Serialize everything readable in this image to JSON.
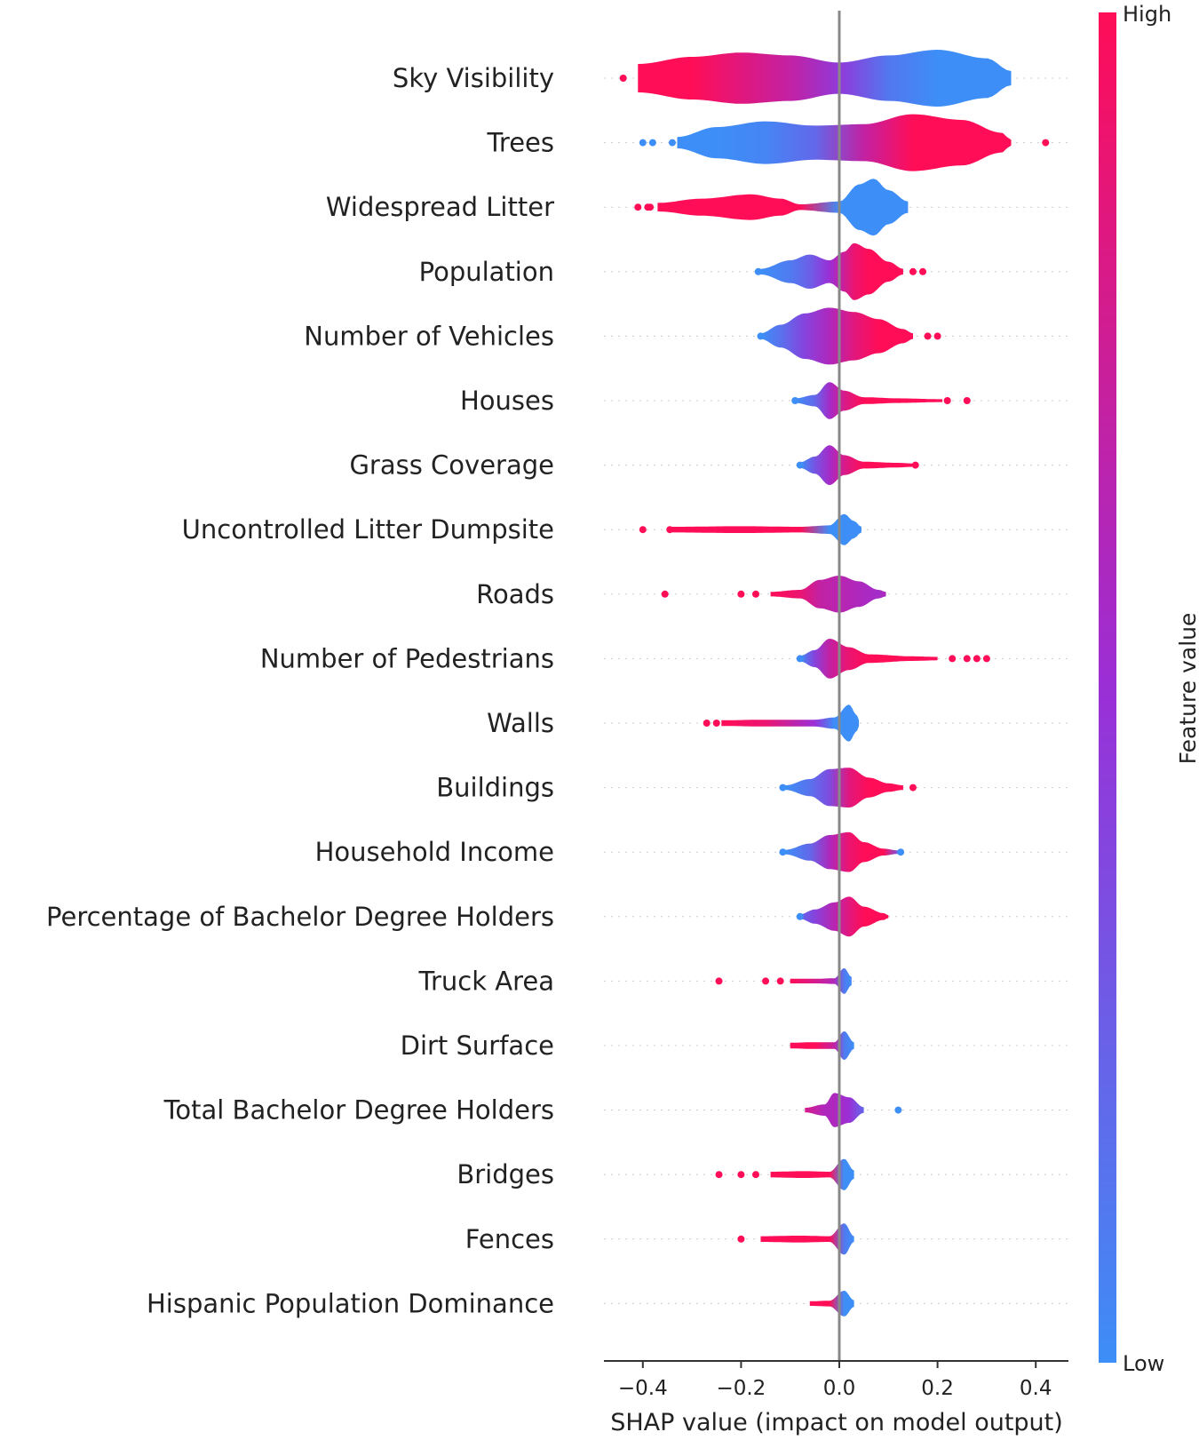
{
  "chart_data": {
    "type": "scatter",
    "subtype": "shap-violin-summary",
    "xlabel": "SHAP value (impact on model output)",
    "xlim": [
      -0.48,
      0.47
    ],
    "xticks": [
      -0.4,
      -0.2,
      0.0,
      0.2,
      0.4
    ],
    "xtick_labels": [
      "−0.4",
      "−0.2",
      "0.0",
      "0.2",
      "0.4"
    ],
    "colorbar": {
      "title": "Feature value",
      "high_label": "High",
      "low_label": "Low",
      "high_color": "#ff0d57",
      "mid_color": "#9a2fd6",
      "low_color": "#3d8ef7"
    },
    "features": [
      {
        "name": "Sky Visibility",
        "body": [
          [
            -0.41,
            0.5,
            1
          ],
          [
            -0.3,
            0.75,
            1
          ],
          [
            -0.2,
            0.9,
            0.85
          ],
          [
            -0.1,
            0.8,
            0.7
          ],
          [
            0,
            0.55,
            0.45
          ],
          [
            0.1,
            0.8,
            0.12
          ],
          [
            0.2,
            1,
            0
          ],
          [
            0.3,
            0.7,
            0
          ],
          [
            0.35,
            0.25,
            0
          ]
        ],
        "points": [
          [
            -0.44,
            1
          ]
        ]
      },
      {
        "name": "Trees",
        "body": [
          [
            -0.33,
            0.2,
            0
          ],
          [
            -0.25,
            0.55,
            0
          ],
          [
            -0.15,
            0.75,
            0.05
          ],
          [
            -0.05,
            0.6,
            0.2
          ],
          [
            0.05,
            0.65,
            0.7
          ],
          [
            0.15,
            1,
            1
          ],
          [
            0.25,
            0.8,
            1
          ],
          [
            0.33,
            0.35,
            1
          ],
          [
            0.35,
            0.1,
            1
          ]
        ],
        "points": [
          [
            -0.4,
            0
          ],
          [
            -0.38,
            0
          ],
          [
            -0.34,
            0
          ],
          [
            0.42,
            1
          ]
        ]
      },
      {
        "name": "Widespread Litter",
        "body": [
          [
            -0.37,
            0.15,
            1
          ],
          [
            -0.28,
            0.3,
            1
          ],
          [
            -0.18,
            0.45,
            1
          ],
          [
            -0.12,
            0.3,
            1
          ],
          [
            -0.08,
            0.1,
            1
          ],
          [
            0,
            0.2,
            0
          ],
          [
            0.04,
            0.8,
            0
          ],
          [
            0.07,
            1,
            0
          ],
          [
            0.1,
            0.6,
            0
          ],
          [
            0.14,
            0.2,
            0
          ]
        ],
        "points": [
          [
            -0.41,
            1
          ],
          [
            -0.39,
            1
          ],
          [
            -0.385,
            1
          ]
        ]
      },
      {
        "name": "Population",
        "body": [
          [
            -0.16,
            0.1,
            0
          ],
          [
            -0.1,
            0.4,
            0.1
          ],
          [
            -0.06,
            0.6,
            0.25
          ],
          [
            -0.02,
            0.4,
            0.5
          ],
          [
            0.01,
            0.7,
            0.75
          ],
          [
            0.03,
            1,
            0.9
          ],
          [
            0.06,
            0.8,
            1
          ],
          [
            0.1,
            0.35,
            1
          ],
          [
            0.13,
            0.1,
            1
          ]
        ],
        "points": [
          [
            -0.165,
            0
          ],
          [
            0.15,
            1
          ],
          [
            0.17,
            1
          ]
        ]
      },
      {
        "name": "Number of Vehicles",
        "body": [
          [
            -0.16,
            0.1,
            0
          ],
          [
            -0.12,
            0.4,
            0.15
          ],
          [
            -0.07,
            0.8,
            0.4
          ],
          [
            -0.02,
            1,
            0.6
          ],
          [
            0.03,
            0.85,
            0.85
          ],
          [
            0.08,
            0.6,
            1
          ],
          [
            0.13,
            0.25,
            1
          ],
          [
            0.15,
            0.1,
            1
          ]
        ],
        "points": [
          [
            -0.16,
            0
          ],
          [
            0.18,
            1
          ],
          [
            0.2,
            1
          ]
        ]
      },
      {
        "name": "Houses",
        "body": [
          [
            -0.09,
            0.08,
            0
          ],
          [
            -0.05,
            0.2,
            0.2
          ],
          [
            -0.02,
            0.65,
            0.55
          ],
          [
            0.01,
            0.35,
            0.8
          ],
          [
            0.05,
            0.12,
            1
          ],
          [
            0.12,
            0.08,
            1
          ],
          [
            0.21,
            0.05,
            1
          ]
        ],
        "points": [
          [
            -0.09,
            0
          ],
          [
            0.22,
            1
          ],
          [
            0.26,
            1
          ]
        ]
      },
      {
        "name": "Grass Coverage",
        "body": [
          [
            -0.08,
            0.1,
            0
          ],
          [
            -0.05,
            0.3,
            0.3
          ],
          [
            -0.02,
            0.7,
            0.55
          ],
          [
            0.01,
            0.35,
            0.8
          ],
          [
            0.05,
            0.12,
            1
          ],
          [
            0.12,
            0.08,
            1
          ],
          [
            0.15,
            0.06,
            1
          ]
        ],
        "points": [
          [
            -0.08,
            0
          ],
          [
            0.155,
            1
          ]
        ]
      },
      {
        "name": "Uncontrolled Litter Dumpsite",
        "body": [
          [
            -0.34,
            0.1,
            1
          ],
          [
            -0.2,
            0.12,
            1
          ],
          [
            -0.08,
            0.1,
            1
          ],
          [
            -0.02,
            0.15,
            0
          ],
          [
            0.01,
            0.55,
            0
          ],
          [
            0.03,
            0.3,
            0
          ],
          [
            0.045,
            0.1,
            0
          ]
        ],
        "points": [
          [
            -0.4,
            1
          ],
          [
            -0.345,
            1
          ]
        ]
      },
      {
        "name": "Roads",
        "body": [
          [
            -0.14,
            0.08,
            1
          ],
          [
            -0.08,
            0.15,
            0.9
          ],
          [
            -0.04,
            0.5,
            0.7
          ],
          [
            0,
            0.65,
            0.65
          ],
          [
            0.04,
            0.45,
            0.6
          ],
          [
            0.08,
            0.15,
            0.55
          ],
          [
            0.095,
            0.08,
            0.6
          ]
        ],
        "points": [
          [
            -0.355,
            1
          ],
          [
            -0.2,
            1
          ],
          [
            -0.17,
            1
          ]
        ]
      },
      {
        "name": "Number of Pedestrians",
        "body": [
          [
            -0.08,
            0.1,
            0
          ],
          [
            -0.05,
            0.3,
            0.4
          ],
          [
            -0.02,
            0.7,
            0.7
          ],
          [
            0.02,
            0.4,
            0.9
          ],
          [
            0.06,
            0.15,
            1
          ],
          [
            0.15,
            0.08,
            1
          ],
          [
            0.2,
            0.06,
            1
          ]
        ],
        "points": [
          [
            -0.08,
            0
          ],
          [
            0.23,
            1
          ],
          [
            0.26,
            1
          ],
          [
            0.28,
            1
          ],
          [
            0.3,
            1
          ]
        ]
      },
      {
        "name": "Walls",
        "body": [
          [
            -0.24,
            0.1,
            1
          ],
          [
            -0.15,
            0.12,
            0.9
          ],
          [
            -0.05,
            0.12,
            0.5
          ],
          [
            -0.01,
            0.2,
            0
          ],
          [
            0.02,
            0.65,
            0
          ],
          [
            0.035,
            0.3,
            0
          ],
          [
            0.04,
            0.1,
            0
          ]
        ],
        "points": [
          [
            -0.27,
            1
          ],
          [
            -0.25,
            1
          ]
        ]
      },
      {
        "name": "Buildings",
        "body": [
          [
            -0.11,
            0.08,
            0
          ],
          [
            -0.06,
            0.3,
            0.15
          ],
          [
            -0.02,
            0.65,
            0.35
          ],
          [
            0.02,
            0.7,
            0.85
          ],
          [
            0.06,
            0.35,
            1
          ],
          [
            0.1,
            0.15,
            1
          ],
          [
            0.13,
            0.08,
            1
          ]
        ],
        "points": [
          [
            -0.115,
            0
          ],
          [
            0.15,
            1
          ]
        ]
      },
      {
        "name": "Household Income",
        "body": [
          [
            -0.11,
            0.08,
            0
          ],
          [
            -0.06,
            0.3,
            0.2
          ],
          [
            -0.02,
            0.6,
            0.6
          ],
          [
            0.02,
            0.7,
            0.9
          ],
          [
            0.05,
            0.35,
            1
          ],
          [
            0.09,
            0.12,
            1
          ],
          [
            0.12,
            0.06,
            0.3
          ]
        ],
        "points": [
          [
            -0.115,
            0
          ],
          [
            0.125,
            0
          ]
        ]
      },
      {
        "name": "Percentage of Bachelor Degree Holders",
        "body": [
          [
            -0.08,
            0.08,
            0.2
          ],
          [
            -0.05,
            0.25,
            0.4
          ],
          [
            -0.01,
            0.5,
            0.65
          ],
          [
            0.02,
            0.7,
            0.85
          ],
          [
            0.05,
            0.35,
            1
          ],
          [
            0.09,
            0.12,
            1
          ],
          [
            0.1,
            0.05,
            1
          ]
        ],
        "points": [
          [
            -0.08,
            0
          ]
        ]
      },
      {
        "name": "Truck Area",
        "body": [
          [
            -0.1,
            0.08,
            1
          ],
          [
            -0.05,
            0.08,
            0.8
          ],
          [
            -0.01,
            0.1,
            0.6
          ],
          [
            0.01,
            0.45,
            0.1
          ],
          [
            0.025,
            0.15,
            0
          ]
        ],
        "points": [
          [
            -0.245,
            1
          ],
          [
            -0.15,
            1
          ],
          [
            -0.12,
            1
          ]
        ]
      },
      {
        "name": "Dirt Surface",
        "body": [
          [
            -0.1,
            0.1,
            1
          ],
          [
            -0.05,
            0.12,
            1
          ],
          [
            -0.01,
            0.12,
            0.7
          ],
          [
            0.01,
            0.5,
            0.1
          ],
          [
            0.03,
            0.12,
            0
          ]
        ],
        "points": []
      },
      {
        "name": "Total Bachelor Degree Holders",
        "body": [
          [
            -0.07,
            0.08,
            0.8
          ],
          [
            -0.03,
            0.2,
            0.6
          ],
          [
            -0.01,
            0.6,
            0.6
          ],
          [
            0.02,
            0.45,
            0.5
          ],
          [
            0.05,
            0.1,
            0.2
          ]
        ],
        "points": [
          [
            0.12,
            0
          ]
        ]
      },
      {
        "name": "Bridges",
        "body": [
          [
            -0.14,
            0.1,
            1
          ],
          [
            -0.07,
            0.12,
            1
          ],
          [
            -0.02,
            0.1,
            1
          ],
          [
            0.01,
            0.55,
            0
          ],
          [
            0.03,
            0.15,
            0
          ]
        ],
        "points": [
          [
            -0.245,
            1
          ],
          [
            -0.2,
            1
          ],
          [
            -0.17,
            1
          ]
        ]
      },
      {
        "name": "Fences",
        "body": [
          [
            -0.16,
            0.1,
            1
          ],
          [
            -0.08,
            0.12,
            1
          ],
          [
            -0.02,
            0.1,
            1
          ],
          [
            0.01,
            0.55,
            0.1
          ],
          [
            0.03,
            0.1,
            0
          ]
        ],
        "points": [
          [
            -0.2,
            1
          ]
        ]
      },
      {
        "name": "Hispanic Population Dominance",
        "body": [
          [
            -0.06,
            0.08,
            1
          ],
          [
            -0.02,
            0.1,
            1
          ],
          [
            0.01,
            0.45,
            0
          ],
          [
            0.03,
            0.12,
            0
          ]
        ],
        "points": []
      }
    ]
  }
}
